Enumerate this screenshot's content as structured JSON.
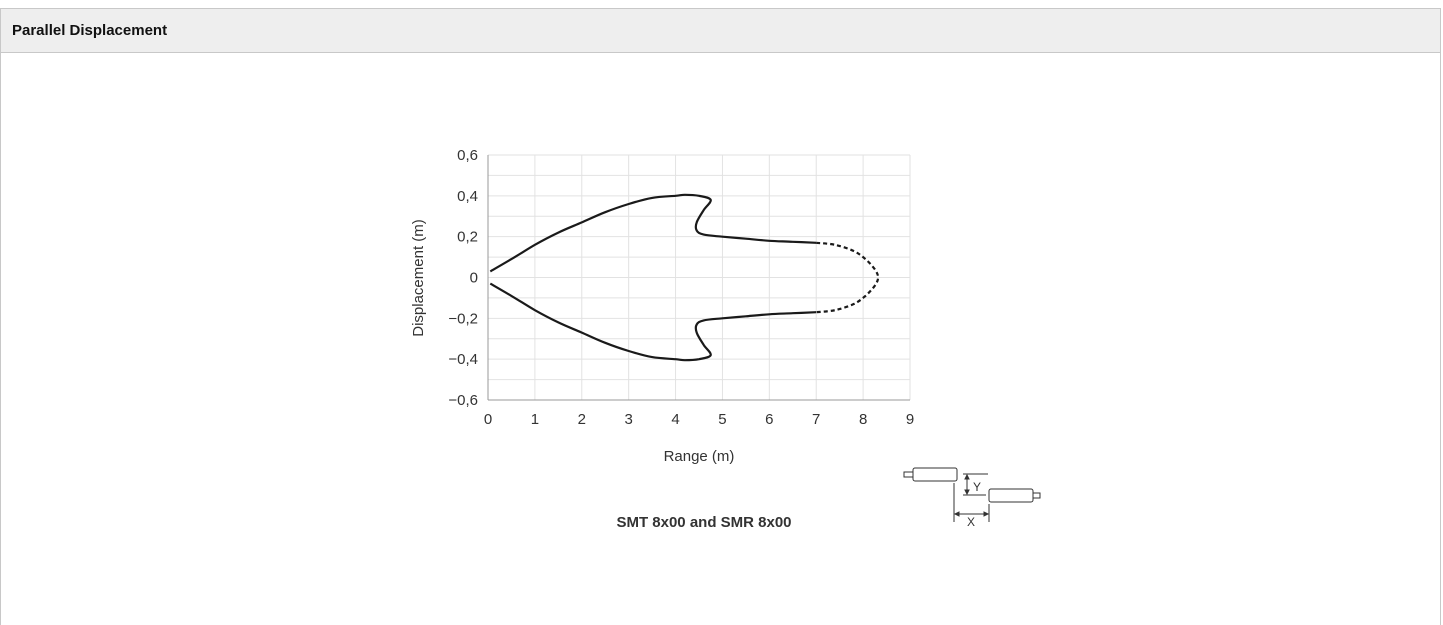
{
  "panel": {
    "title": "Parallel Displacement"
  },
  "chart_data": {
    "type": "line",
    "title": "",
    "subtitle": "SMT 8x00 and SMR 8x00",
    "xlabel": "Range (m)",
    "ylabel": "Displacement (m)",
    "xlim": [
      0,
      9
    ],
    "ylim": [
      -0.6,
      0.6
    ],
    "xticks": [
      "0",
      "1",
      "2",
      "3",
      "4",
      "5",
      "6",
      "7",
      "8",
      "9"
    ],
    "yticks": [
      "0,6",
      "0,4",
      "0,2",
      "0",
      "−0,2",
      "−0,4",
      "−0,6"
    ],
    "ytick_values": [
      0.6,
      0.4,
      0.2,
      0,
      -0.2,
      -0.4,
      -0.6
    ],
    "grid": true,
    "series": [
      {
        "style": "solid",
        "x": [
          0.05,
          0.5,
          1.0,
          1.5,
          2.0,
          2.5,
          3.0,
          3.5,
          4.0,
          4.2,
          4.5,
          4.75,
          4.6,
          4.45,
          4.45,
          4.6,
          5.0,
          5.5,
          6.0,
          6.5,
          7.0
        ],
        "y": [
          0.03,
          0.09,
          0.16,
          0.22,
          0.27,
          0.32,
          0.36,
          0.39,
          0.4,
          0.405,
          0.4,
          0.38,
          0.33,
          0.27,
          0.23,
          0.21,
          0.2,
          0.19,
          0.18,
          0.175,
          0.17
        ]
      },
      {
        "style": "dashed",
        "x": [
          7.0,
          7.4,
          7.8,
          8.05,
          8.25,
          8.32,
          8.25,
          8.05,
          7.8,
          7.4,
          7.0
        ],
        "y": [
          0.17,
          0.16,
          0.13,
          0.09,
          0.04,
          0.0,
          -0.04,
          -0.09,
          -0.13,
          -0.16,
          -0.17
        ]
      },
      {
        "style": "solid",
        "x": [
          7.0,
          6.5,
          6.0,
          5.5,
          5.0,
          4.6,
          4.45,
          4.45,
          4.6,
          4.75,
          4.5,
          4.2,
          4.0,
          3.5,
          3.0,
          2.5,
          2.0,
          1.5,
          1.0,
          0.5,
          0.05
        ],
        "y": [
          -0.17,
          -0.175,
          -0.18,
          -0.19,
          -0.2,
          -0.21,
          -0.23,
          -0.27,
          -0.33,
          -0.38,
          -0.4,
          -0.405,
          -0.4,
          -0.39,
          -0.36,
          -0.32,
          -0.27,
          -0.22,
          -0.16,
          -0.09,
          -0.03
        ]
      }
    ]
  },
  "diagram": {
    "label_y": "Y",
    "label_x": "X"
  }
}
